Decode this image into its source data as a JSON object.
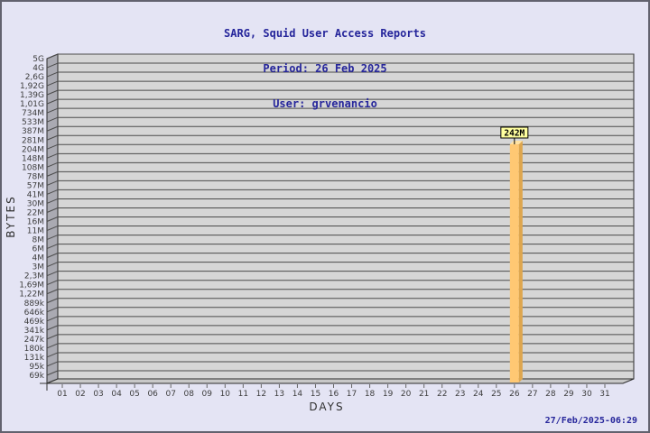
{
  "header": {
    "title": "SARG, Squid User Access Reports",
    "period": "Period: 26 Feb 2025",
    "user": "User: grvenancio"
  },
  "chart_data": {
    "type": "bar",
    "title": "SARG, Squid User Access Reports",
    "subtitle": "Period: 26 Feb 2025",
    "user": "User: grvenancio",
    "xlabel": "DAYS",
    "ylabel": "BYTES",
    "x_categories": [
      "01",
      "02",
      "03",
      "04",
      "05",
      "06",
      "07",
      "08",
      "09",
      "10",
      "11",
      "12",
      "13",
      "14",
      "15",
      "16",
      "17",
      "18",
      "19",
      "20",
      "21",
      "22",
      "23",
      "24",
      "25",
      "26",
      "27",
      "28",
      "29",
      "30",
      "31"
    ],
    "y_tick_labels": [
      "5G",
      "4G",
      "2,6G",
      "1,92G",
      "1,39G",
      "1,01G",
      "734M",
      "533M",
      "387M",
      "281M",
      "204M",
      "148M",
      "108M",
      "78M",
      "57M",
      "41M",
      "30M",
      "22M",
      "16M",
      "11M",
      "8M",
      "6M",
      "4M",
      "3M",
      "2,3M",
      "1,69M",
      "1,22M",
      "889k",
      "646k",
      "469k",
      "341k",
      "247k",
      "180k",
      "131k",
      "95k",
      "69k"
    ],
    "y_scale": {
      "type": "log",
      "min_bytes": 69000,
      "max_bytes": 5000000000
    },
    "grid": true,
    "legend": "none",
    "bars": [
      {
        "day": "26",
        "label": "242M",
        "value_bytes": 242000000
      }
    ]
  },
  "colors": {
    "background": "#E4E4F4",
    "frame_border": "#62626E",
    "title_text": "#26269B",
    "back_wall": "#D6D6D6",
    "side_wall": "#AAAAB2",
    "floor": "#C8C8C8",
    "wall_outline": "#2B2B2B",
    "gridline": "#4B4B4B",
    "tick_text": "#3D3D3D",
    "bar_face": "#FFC873",
    "bar_side": "#DEA64E",
    "bar_top": "#FFE2A4",
    "value_box_bg": "#FFFF9E",
    "value_box_border": "#000000"
  },
  "footer": {
    "timestamp": "27/Feb/2025-06:29"
  }
}
